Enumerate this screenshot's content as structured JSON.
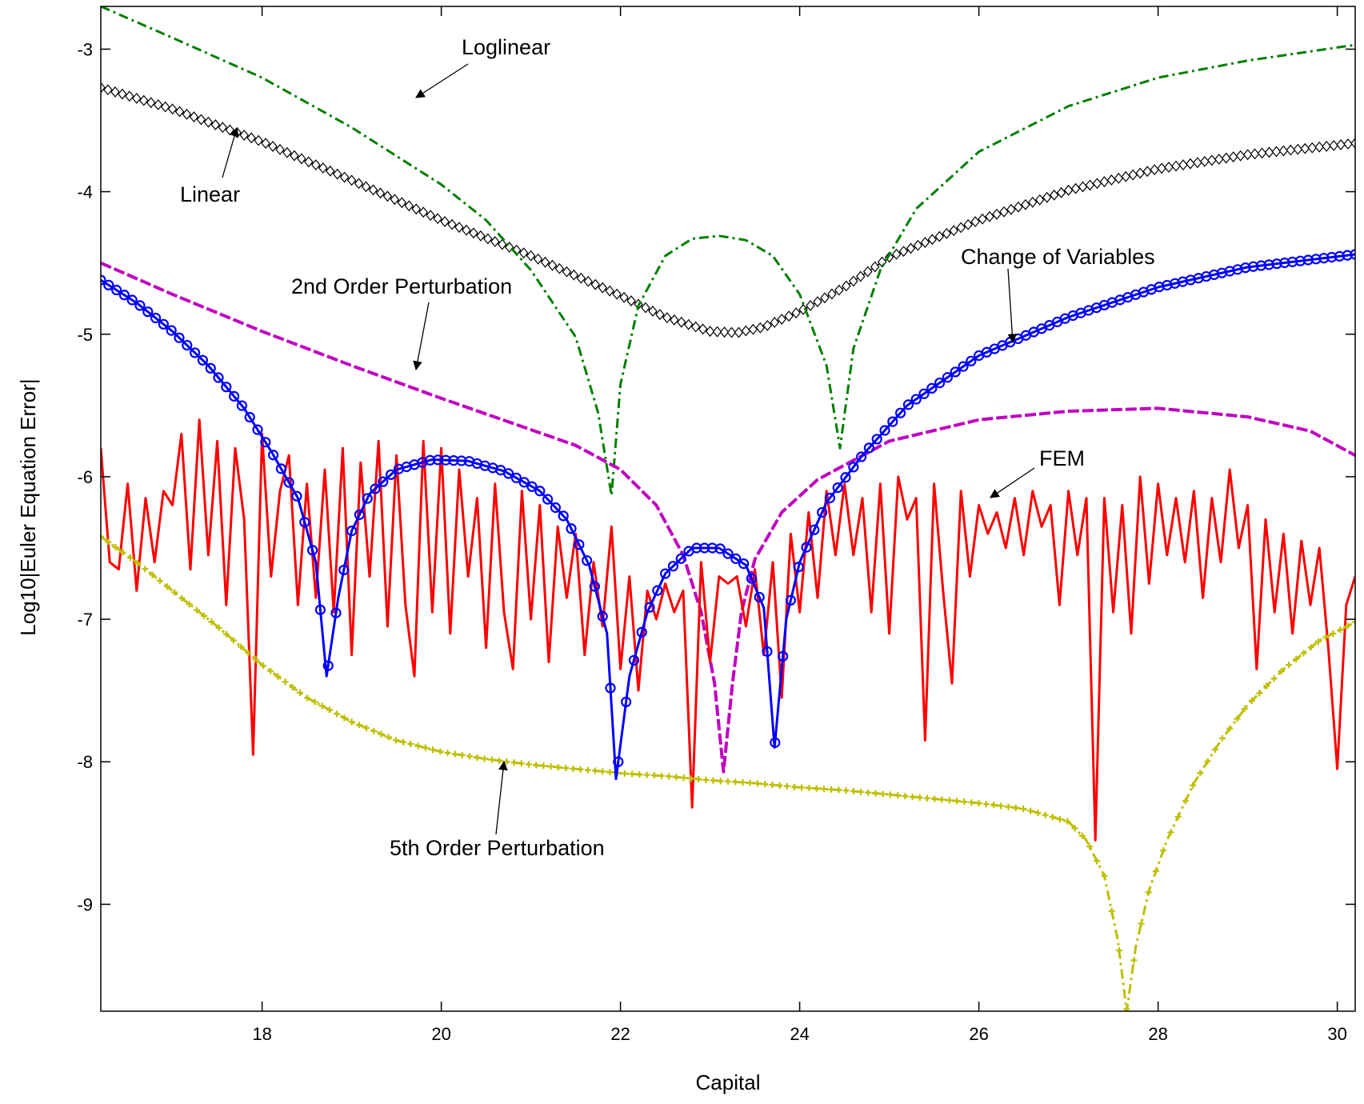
{
  "chart_data": {
    "type": "line",
    "title": "",
    "xlabel": "Capital",
    "ylabel": "Log10|Euler Equation Error|",
    "xlim": [
      16.2,
      30.2
    ],
    "ylim": [
      -9.75,
      -2.7
    ],
    "xticks": [
      18,
      20,
      22,
      24,
      26,
      28,
      30
    ],
    "yticks": [
      -3,
      -4,
      -5,
      -6,
      -7,
      -8,
      -9
    ],
    "grid": false,
    "legend": "none",
    "series": [
      {
        "name": "Loglinear",
        "color": "#007F00",
        "style": "dash-dot",
        "points": [
          [
            16.2,
            -2.7
          ],
          [
            17,
            -2.92
          ],
          [
            18,
            -3.2
          ],
          [
            19,
            -3.55
          ],
          [
            20,
            -3.95
          ],
          [
            20.5,
            -4.2
          ],
          [
            21,
            -4.55
          ],
          [
            21.5,
            -5.02
          ],
          [
            21.75,
            -5.55
          ],
          [
            21.9,
            -6.13
          ],
          [
            22.0,
            -5.35
          ],
          [
            22.2,
            -4.8
          ],
          [
            22.5,
            -4.45
          ],
          [
            22.8,
            -4.33
          ],
          [
            23.1,
            -4.31
          ],
          [
            23.4,
            -4.34
          ],
          [
            23.7,
            -4.45
          ],
          [
            24.0,
            -4.72
          ],
          [
            24.3,
            -5.22
          ],
          [
            24.45,
            -5.8
          ],
          [
            24.6,
            -5.1
          ],
          [
            24.9,
            -4.55
          ],
          [
            25.3,
            -4.12
          ],
          [
            26,
            -3.72
          ],
          [
            27,
            -3.4
          ],
          [
            28,
            -3.2
          ],
          [
            29,
            -3.08
          ],
          [
            30.2,
            -2.97
          ]
        ]
      },
      {
        "name": "Linear",
        "color": "#000000",
        "style": "diamond-markers",
        "points": [
          [
            16.2,
            -3.27
          ],
          [
            17,
            -3.42
          ],
          [
            18,
            -3.65
          ],
          [
            19,
            -3.92
          ],
          [
            20,
            -4.2
          ],
          [
            21,
            -4.45
          ],
          [
            22,
            -4.73
          ],
          [
            22.5,
            -4.88
          ],
          [
            23,
            -4.98
          ],
          [
            23.3,
            -4.99
          ],
          [
            23.6,
            -4.95
          ],
          [
            24,
            -4.84
          ],
          [
            24.5,
            -4.67
          ],
          [
            25,
            -4.46
          ],
          [
            26,
            -4.2
          ],
          [
            27,
            -3.99
          ],
          [
            28,
            -3.84
          ],
          [
            29,
            -3.74
          ],
          [
            30.2,
            -3.66
          ]
        ]
      },
      {
        "name": "2nd Order Perturbation",
        "color": "#BF00BF",
        "style": "dashed",
        "points": [
          [
            16.2,
            -4.5
          ],
          [
            17,
            -4.72
          ],
          [
            18,
            -4.98
          ],
          [
            19,
            -5.22
          ],
          [
            20,
            -5.45
          ],
          [
            21,
            -5.67
          ],
          [
            21.5,
            -5.78
          ],
          [
            22,
            -5.95
          ],
          [
            22.4,
            -6.2
          ],
          [
            22.7,
            -6.55
          ],
          [
            22.9,
            -6.95
          ],
          [
            23.05,
            -7.45
          ],
          [
            23.15,
            -8.07
          ],
          [
            23.25,
            -7.45
          ],
          [
            23.35,
            -6.95
          ],
          [
            23.5,
            -6.58
          ],
          [
            23.8,
            -6.25
          ],
          [
            24.2,
            -6.02
          ],
          [
            25,
            -5.75
          ],
          [
            26,
            -5.6
          ],
          [
            27,
            -5.54
          ],
          [
            28,
            -5.52
          ],
          [
            29,
            -5.58
          ],
          [
            29.7,
            -5.68
          ],
          [
            30.2,
            -5.85
          ]
        ]
      },
      {
        "name": "Change of Variables",
        "color": "#0000FF",
        "style": "circle-markers",
        "points": [
          [
            16.2,
            -4.62
          ],
          [
            16.6,
            -4.78
          ],
          [
            17,
            -4.98
          ],
          [
            17.4,
            -5.22
          ],
          [
            17.8,
            -5.52
          ],
          [
            18.1,
            -5.82
          ],
          [
            18.4,
            -6.15
          ],
          [
            18.6,
            -6.6
          ],
          [
            18.72,
            -7.4
          ],
          [
            18.85,
            -6.85
          ],
          [
            19.0,
            -6.38
          ],
          [
            19.2,
            -6.12
          ],
          [
            19.5,
            -5.95
          ],
          [
            19.9,
            -5.88
          ],
          [
            20.3,
            -5.89
          ],
          [
            20.7,
            -5.96
          ],
          [
            21.1,
            -6.1
          ],
          [
            21.4,
            -6.3
          ],
          [
            21.65,
            -6.62
          ],
          [
            21.85,
            -7.1
          ],
          [
            21.95,
            -8.12
          ],
          [
            22.1,
            -7.4
          ],
          [
            22.3,
            -6.95
          ],
          [
            22.5,
            -6.68
          ],
          [
            22.8,
            -6.5
          ],
          [
            23.1,
            -6.5
          ],
          [
            23.4,
            -6.62
          ],
          [
            23.6,
            -6.92
          ],
          [
            23.72,
            -7.9
          ],
          [
            23.85,
            -7.0
          ],
          [
            24.0,
            -6.6
          ],
          [
            24.3,
            -6.18
          ],
          [
            24.7,
            -5.85
          ],
          [
            25.2,
            -5.5
          ],
          [
            26,
            -5.15
          ],
          [
            27,
            -4.88
          ],
          [
            28,
            -4.67
          ],
          [
            29,
            -4.53
          ],
          [
            30.2,
            -4.44
          ]
        ]
      },
      {
        "name": "FEM",
        "color": "#FF0000",
        "style": "solid",
        "points": [
          [
            16.2,
            -5.8
          ],
          [
            16.3,
            -6.6
          ],
          [
            16.4,
            -6.65
          ],
          [
            16.5,
            -6.05
          ],
          [
            16.6,
            -6.8
          ],
          [
            16.7,
            -6.15
          ],
          [
            16.8,
            -6.6
          ],
          [
            16.9,
            -6.1
          ],
          [
            17.0,
            -6.2
          ],
          [
            17.1,
            -5.7
          ],
          [
            17.2,
            -6.65
          ],
          [
            17.3,
            -5.6
          ],
          [
            17.4,
            -6.55
          ],
          [
            17.5,
            -5.75
          ],
          [
            17.6,
            -6.9
          ],
          [
            17.7,
            -5.8
          ],
          [
            17.8,
            -6.3
          ],
          [
            17.9,
            -7.95
          ],
          [
            18.0,
            -5.7
          ],
          [
            18.1,
            -6.7
          ],
          [
            18.2,
            -6.1
          ],
          [
            18.3,
            -5.85
          ],
          [
            18.4,
            -6.9
          ],
          [
            18.5,
            -6.05
          ],
          [
            18.6,
            -6.85
          ],
          [
            18.7,
            -5.95
          ],
          [
            18.8,
            -6.95
          ],
          [
            18.9,
            -5.8
          ],
          [
            19.0,
            -7.25
          ],
          [
            19.1,
            -5.9
          ],
          [
            19.2,
            -6.7
          ],
          [
            19.3,
            -5.75
          ],
          [
            19.4,
            -7.05
          ],
          [
            19.5,
            -5.85
          ],
          [
            19.6,
            -6.9
          ],
          [
            19.7,
            -7.4
          ],
          [
            19.8,
            -5.75
          ],
          [
            19.9,
            -6.95
          ],
          [
            20.0,
            -5.8
          ],
          [
            20.1,
            -7.1
          ],
          [
            20.2,
            -5.95
          ],
          [
            20.3,
            -6.7
          ],
          [
            20.4,
            -6.15
          ],
          [
            20.5,
            -7.2
          ],
          [
            20.6,
            -6.05
          ],
          [
            20.7,
            -6.95
          ],
          [
            20.8,
            -7.35
          ],
          [
            20.9,
            -6.1
          ],
          [
            21.0,
            -7.0
          ],
          [
            21.1,
            -6.2
          ],
          [
            21.2,
            -7.3
          ],
          [
            21.3,
            -6.35
          ],
          [
            21.4,
            -6.85
          ],
          [
            21.5,
            -6.4
          ],
          [
            21.6,
            -7.25
          ],
          [
            21.7,
            -6.6
          ],
          [
            21.8,
            -7.05
          ],
          [
            21.9,
            -6.35
          ],
          [
            22.0,
            -7.35
          ],
          [
            22.1,
            -6.7
          ],
          [
            22.2,
            -7.5
          ],
          [
            22.3,
            -6.8
          ],
          [
            22.4,
            -7.0
          ],
          [
            22.5,
            -6.75
          ],
          [
            22.6,
            -6.95
          ],
          [
            22.7,
            -6.8
          ],
          [
            22.8,
            -8.32
          ],
          [
            22.9,
            -6.6
          ],
          [
            23.0,
            -7.3
          ],
          [
            23.1,
            -6.7
          ],
          [
            23.2,
            -6.75
          ],
          [
            23.3,
            -6.7
          ],
          [
            23.4,
            -7.05
          ],
          [
            23.5,
            -6.65
          ],
          [
            23.6,
            -7.25
          ],
          [
            23.7,
            -6.6
          ],
          [
            23.8,
            -7.55
          ],
          [
            23.9,
            -6.4
          ],
          [
            24.0,
            -6.95
          ],
          [
            24.1,
            -6.25
          ],
          [
            24.2,
            -6.85
          ],
          [
            24.3,
            -6.1
          ],
          [
            24.4,
            -6.55
          ],
          [
            24.5,
            -6.05
          ],
          [
            24.6,
            -6.55
          ],
          [
            24.7,
            -6.15
          ],
          [
            24.8,
            -6.95
          ],
          [
            24.9,
            -6.05
          ],
          [
            25.0,
            -7.1
          ],
          [
            25.1,
            -6.0
          ],
          [
            25.2,
            -6.3
          ],
          [
            25.3,
            -6.15
          ],
          [
            25.4,
            -7.85
          ],
          [
            25.5,
            -6.05
          ],
          [
            25.6,
            -6.8
          ],
          [
            25.7,
            -7.45
          ],
          [
            25.8,
            -6.1
          ],
          [
            25.9,
            -6.7
          ],
          [
            26.0,
            -6.2
          ],
          [
            26.1,
            -6.4
          ],
          [
            26.2,
            -6.25
          ],
          [
            26.3,
            -6.5
          ],
          [
            26.4,
            -6.15
          ],
          [
            26.5,
            -6.55
          ],
          [
            26.6,
            -6.1
          ],
          [
            26.7,
            -6.35
          ],
          [
            26.8,
            -6.2
          ],
          [
            26.9,
            -6.9
          ],
          [
            27.0,
            -6.1
          ],
          [
            27.1,
            -6.55
          ],
          [
            27.2,
            -6.15
          ],
          [
            27.3,
            -8.55
          ],
          [
            27.4,
            -6.15
          ],
          [
            27.5,
            -6.95
          ],
          [
            27.6,
            -6.2
          ],
          [
            27.7,
            -7.1
          ],
          [
            27.8,
            -6.0
          ],
          [
            27.9,
            -6.75
          ],
          [
            28.0,
            -6.05
          ],
          [
            28.1,
            -6.55
          ],
          [
            28.2,
            -6.15
          ],
          [
            28.3,
            -6.6
          ],
          [
            28.4,
            -6.1
          ],
          [
            28.5,
            -6.85
          ],
          [
            28.6,
            -6.15
          ],
          [
            28.7,
            -6.6
          ],
          [
            28.8,
            -5.95
          ],
          [
            28.9,
            -6.5
          ],
          [
            29.0,
            -6.2
          ],
          [
            29.1,
            -7.35
          ],
          [
            29.2,
            -6.3
          ],
          [
            29.3,
            -6.95
          ],
          [
            29.4,
            -6.4
          ],
          [
            29.5,
            -7.1
          ],
          [
            29.6,
            -6.45
          ],
          [
            29.7,
            -6.9
          ],
          [
            29.8,
            -6.5
          ],
          [
            29.9,
            -7.2
          ],
          [
            30.0,
            -8.05
          ],
          [
            30.1,
            -6.9
          ],
          [
            30.2,
            -6.7
          ]
        ]
      },
      {
        "name": "5th Order Perturbation",
        "color": "#BFBF00",
        "style": "plus-markers dash-dot",
        "points": [
          [
            16.2,
            -6.42
          ],
          [
            16.6,
            -6.6
          ],
          [
            17,
            -6.8
          ],
          [
            17.5,
            -7.05
          ],
          [
            18,
            -7.32
          ],
          [
            18.5,
            -7.55
          ],
          [
            19,
            -7.72
          ],
          [
            19.5,
            -7.85
          ],
          [
            20,
            -7.93
          ],
          [
            20.5,
            -7.98
          ],
          [
            21,
            -8.02
          ],
          [
            21.5,
            -8.05
          ],
          [
            22,
            -8.08
          ],
          [
            22.5,
            -8.1
          ],
          [
            23,
            -8.13
          ],
          [
            23.5,
            -8.15
          ],
          [
            24,
            -8.18
          ],
          [
            24.5,
            -8.2
          ],
          [
            25,
            -8.23
          ],
          [
            25.5,
            -8.26
          ],
          [
            26,
            -8.29
          ],
          [
            26.5,
            -8.33
          ],
          [
            27,
            -8.42
          ],
          [
            27.2,
            -8.55
          ],
          [
            27.4,
            -8.8
          ],
          [
            27.55,
            -9.25
          ],
          [
            27.65,
            -9.75
          ],
          [
            27.75,
            -9.3
          ],
          [
            27.9,
            -8.9
          ],
          [
            28.1,
            -8.55
          ],
          [
            28.4,
            -8.15
          ],
          [
            28.7,
            -7.85
          ],
          [
            29.0,
            -7.6
          ],
          [
            29.4,
            -7.35
          ],
          [
            29.8,
            -7.15
          ],
          [
            30.2,
            -7.02
          ]
        ]
      }
    ],
    "annotations": [
      {
        "text": "Loglinear",
        "series": "Loglinear"
      },
      {
        "text": "Linear",
        "series": "Linear"
      },
      {
        "text": "2nd Order Perturbation",
        "series": "2nd Order Perturbation"
      },
      {
        "text": "Change of Variables",
        "series": "Change of Variables"
      },
      {
        "text": "FEM",
        "series": "FEM"
      },
      {
        "text": "5th Order Perturbation",
        "series": "5th Order Perturbation"
      }
    ]
  }
}
